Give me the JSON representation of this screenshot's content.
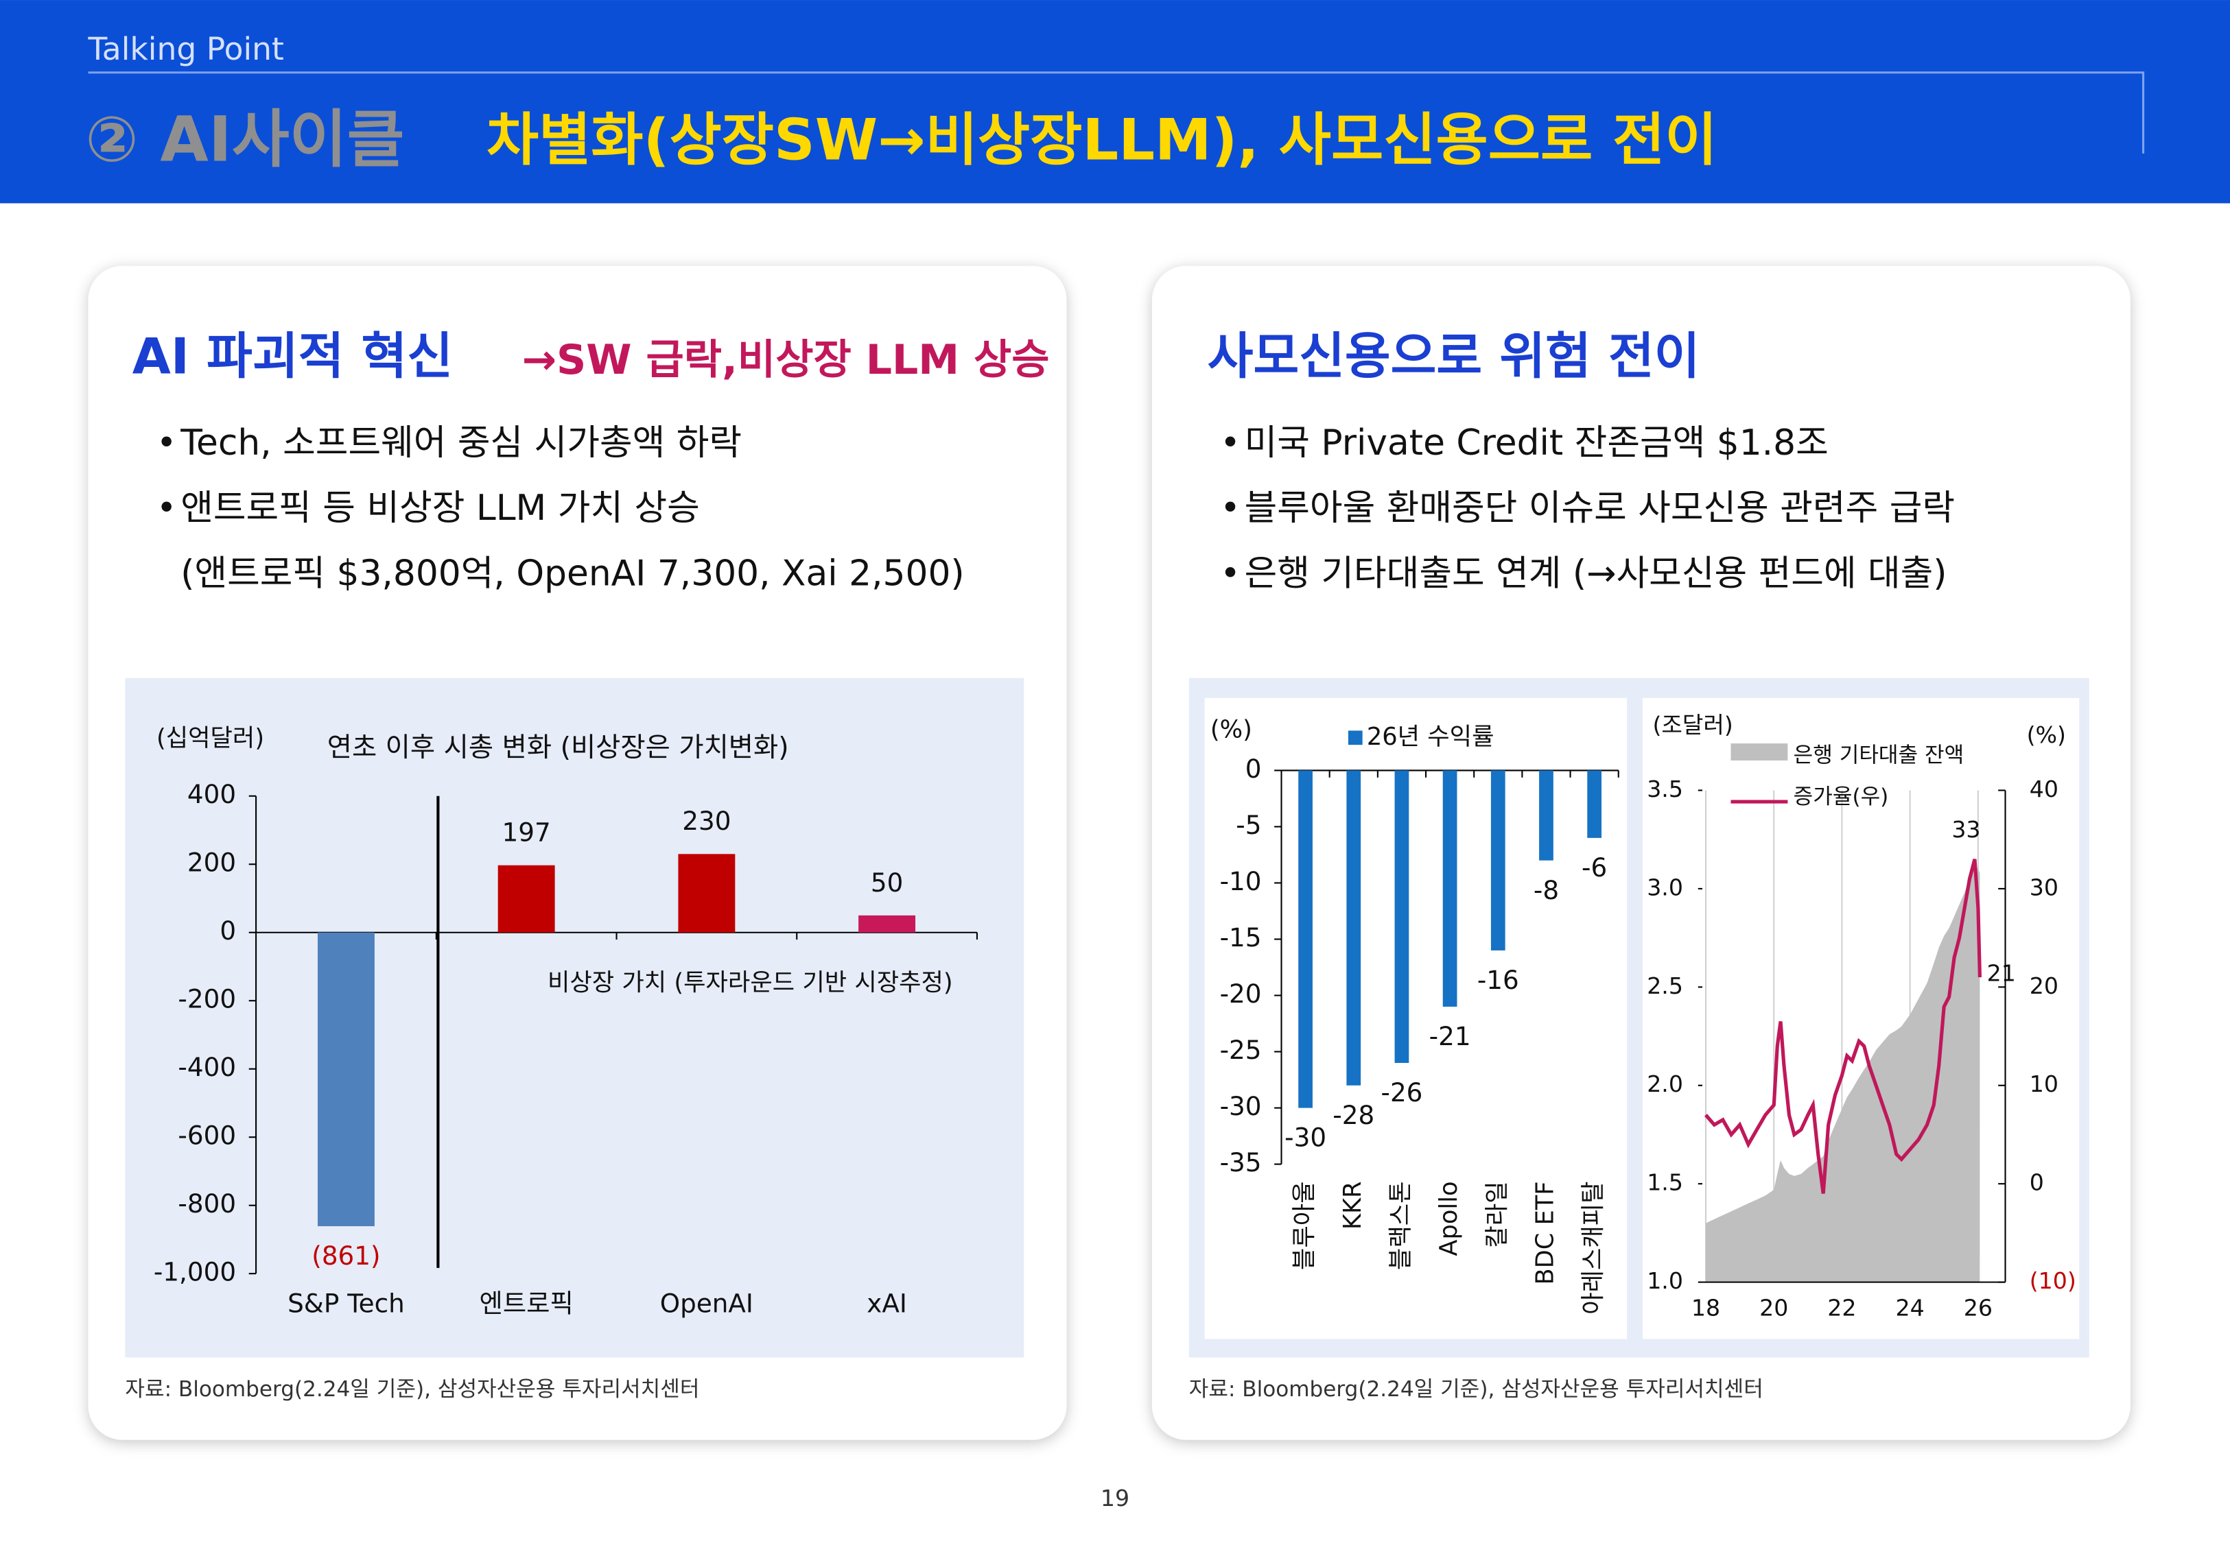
{
  "header": {
    "label": "Talking Point",
    "title_gray": "② AI사이클",
    "title_yellow": "차별화(상장SW→비상장LLM), 사모신용으로 전이"
  },
  "panels": [
    {
      "title": "AI 파괴적 혁신",
      "title_accent": "→SW 급락,비상장 LLM 상승",
      "bullets": [
        [
          "Tech, 소프트웨어 중심 시가총액  하락"
        ],
        [
          "앤트로픽 등 비상장 LLM 가치 상승",
          "(앤트로픽 $3,800억, OpenAI 7,300, Xai 2,500)"
        ]
      ],
      "source": "자료: Bloomberg(2.24일 기준), 삼성자산운용 투자리서치센터"
    },
    {
      "title": "사모신용으로 위험 전이",
      "bullets": [
        [
          "미국 Private Credit 잔존금액 $1.8조"
        ],
        [
          "블루아울 환매중단 이슈로 사모신용 관련주 급락"
        ],
        [
          "은행 기타대출도 연계 (→사모신용 펀드에 대출)"
        ]
      ],
      "source": "자료: Bloomberg(2.24일 기준), 삼성자산운용 투자리서치센터"
    }
  ],
  "page_number": 19,
  "chart_data": [
    {
      "type": "bar",
      "unit_label": "(십억달러)",
      "title": "연초 이후 시총 변화 (비상장은 가치변화)",
      "annotation": "비상장 가치 (투자라운드 기반 시장추정)",
      "categories": [
        "S&P Tech",
        "엔트로픽",
        "OpenAI",
        "xAI"
      ],
      "values": [
        -861,
        197,
        230,
        50
      ],
      "value_labels": [
        "(861)",
        "197",
        "230",
        "50"
      ],
      "colors": [
        "#4f81bd",
        "#c00000",
        "#c00000",
        "#c8185a"
      ],
      "ylim": [
        -1000,
        400
      ],
      "yticks": [
        {
          "value": -1000,
          "label": "-1,000"
        },
        -800,
        -600,
        -400,
        -200,
        0,
        200,
        400
      ]
    },
    {
      "type": "bar",
      "unit_label": "(%)",
      "categories": [
        "블루아울",
        "KKR",
        "블랙스톤",
        "Apollo",
        "칼라일",
        "BDC ETF",
        "아레스캐피탈"
      ],
      "series": [
        {
          "name": "26년 수익률",
          "color": "#1672c4",
          "values": [
            -30,
            -28,
            -26,
            -21,
            -16,
            -8,
            -6
          ]
        }
      ],
      "ylim": [
        -35,
        0
      ],
      "yticks": [
        0,
        -5,
        -10,
        -15,
        -20,
        -25,
        -30,
        -35
      ]
    },
    {
      "type": "combo",
      "unit_label": "(조달러)",
      "unit_label_right": "(%)",
      "x": [
        18,
        18.25,
        18.5,
        18.75,
        19,
        19.25,
        19.5,
        19.75,
        20,
        20.1,
        20.2,
        20.3,
        20.45,
        20.6,
        20.8,
        21,
        21.15,
        21.3,
        21.45,
        21.6,
        21.8,
        22,
        22.15,
        22.3,
        22.5,
        22.65,
        22.8,
        23,
        23.2,
        23.4,
        23.6,
        23.75,
        24,
        24.25,
        24.5,
        24.7,
        24.85,
        25,
        25.15,
        25.3,
        25.45,
        25.6,
        25.75,
        25.9,
        26,
        26.05
      ],
      "xlim": [
        17.9,
        26.8
      ],
      "xticks": [
        18,
        20,
        22,
        24,
        26
      ],
      "xgrid": true,
      "series": [
        {
          "name": "은행 기타대출 잔액",
          "type": "area",
          "color": "#bfbfbf",
          "values": [
            1.3,
            1.32,
            1.34,
            1.36,
            1.38,
            1.4,
            1.42,
            1.44,
            1.47,
            1.55,
            1.62,
            1.58,
            1.55,
            1.54,
            1.55,
            1.58,
            1.6,
            1.62,
            1.64,
            1.72,
            1.8,
            1.88,
            1.94,
            1.98,
            2.04,
            2.08,
            2.12,
            2.18,
            2.22,
            2.26,
            2.28,
            2.3,
            2.36,
            2.44,
            2.52,
            2.62,
            2.7,
            2.76,
            2.8,
            2.86,
            2.92,
            2.98,
            3.05,
            3.12,
            3.1,
            3.08
          ]
        },
        {
          "name": "증가율(우)",
          "type": "line",
          "axis": "y2",
          "color": "#c0185a",
          "values": [
            7,
            6,
            6.5,
            5,
            6,
            4,
            5.5,
            7,
            8,
            14,
            16.5,
            12,
            7,
            5,
            5.5,
            7,
            8,
            3,
            -1,
            6,
            9,
            11,
            13,
            12.5,
            14.5,
            14,
            12,
            10,
            8,
            6,
            3,
            2.5,
            3.5,
            4.5,
            6,
            8,
            12,
            18,
            19,
            23,
            25,
            28,
            31,
            33,
            28,
            21
          ]
        }
      ],
      "ylim": [
        1,
        3.5
      ],
      "yticks": [
        {
          "value": 1,
          "label": "1.0"
        },
        {
          "value": 1.5,
          "label": "1.5"
        },
        {
          "value": 2,
          "label": "2.0"
        },
        {
          "value": 2.5,
          "label": "2.5"
        },
        {
          "value": 3,
          "label": "3.0"
        },
        {
          "value": 3.5,
          "label": "3.5"
        }
      ],
      "y2lim": [
        -10,
        40
      ],
      "y2ticks": [
        {
          "value": -10,
          "label": "(10)"
        },
        0,
        10,
        20,
        30,
        40
      ]
    }
  ]
}
